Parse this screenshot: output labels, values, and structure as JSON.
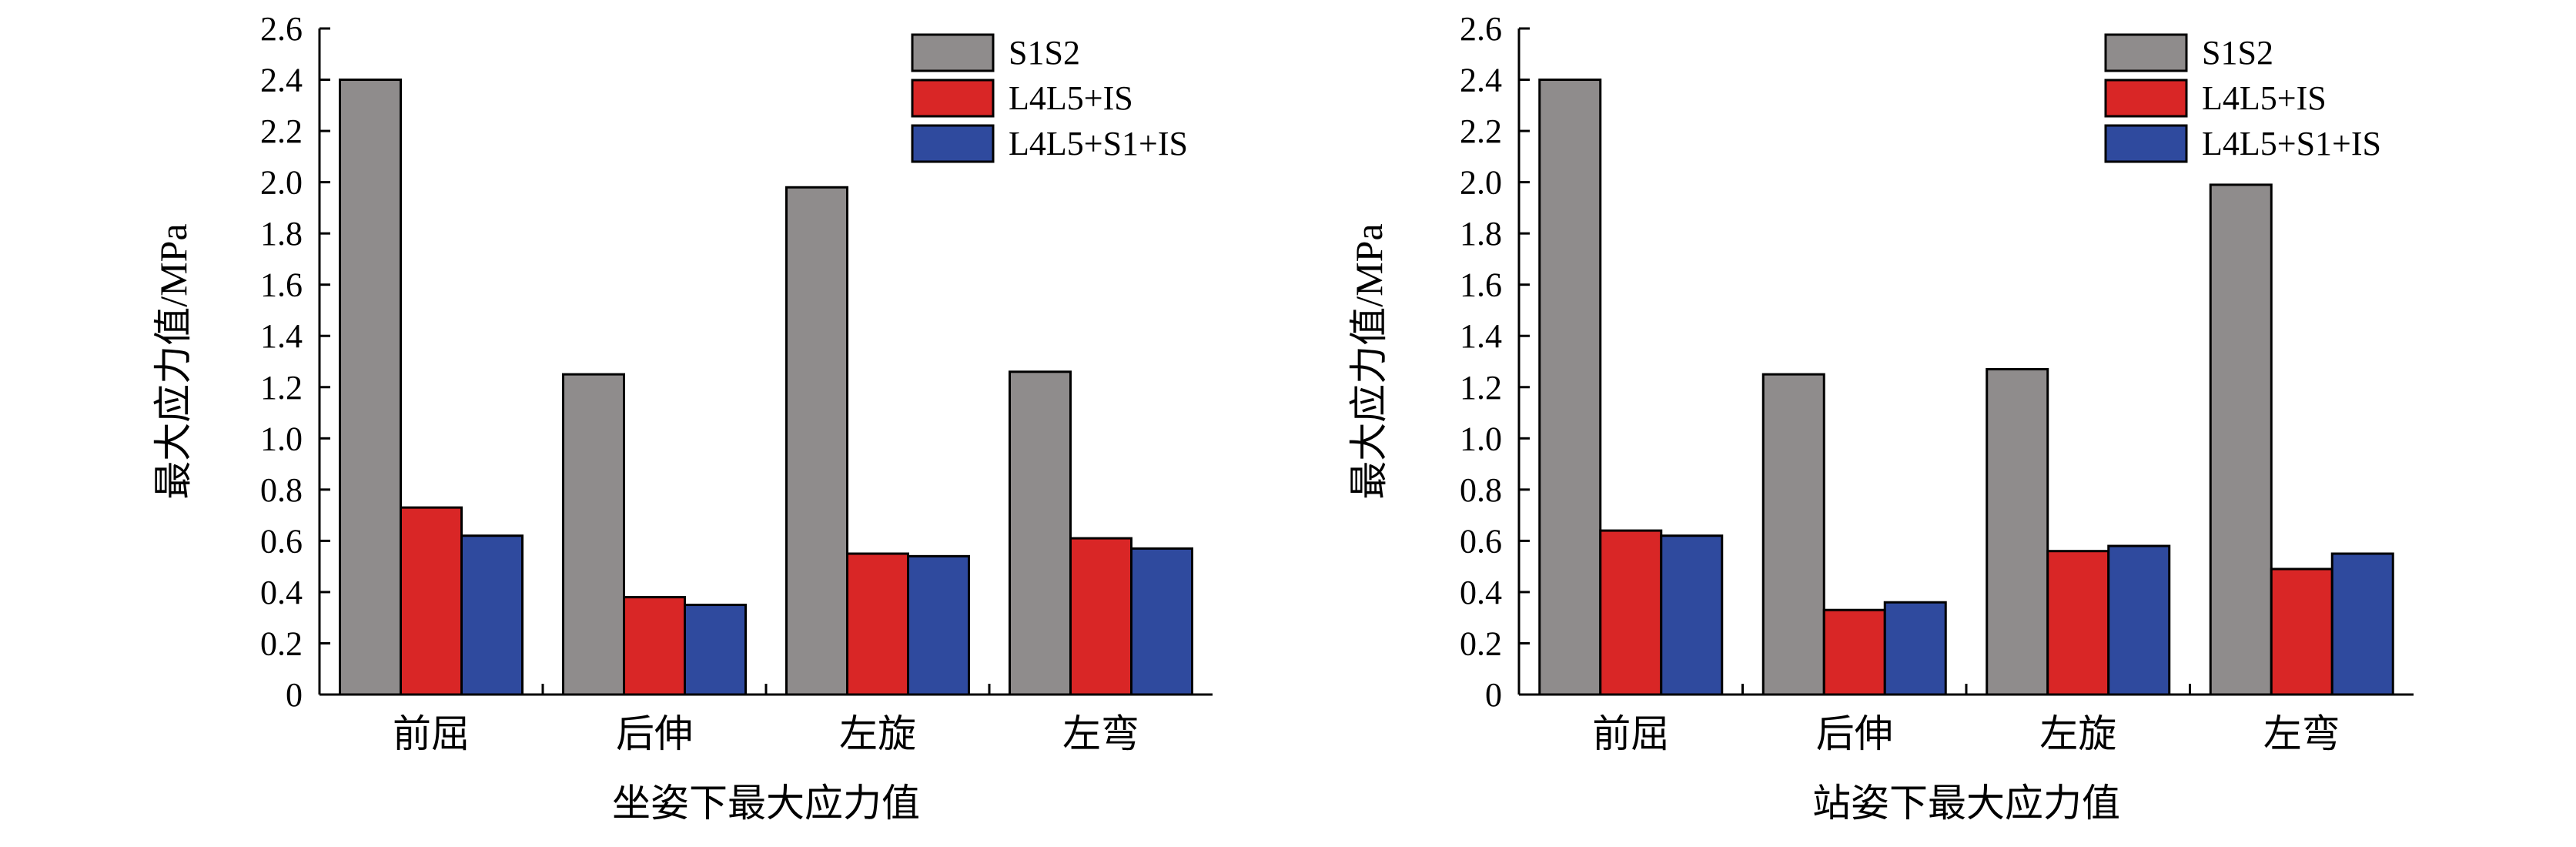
{
  "colors": {
    "S1S2": "#8f8c8c",
    "L4L5_IS": "#d92626",
    "L4L5_S1_IS": "#2f4a9e"
  },
  "chart_data": [
    {
      "type": "bar",
      "categories": [
        "前屈",
        "后伸",
        "左旋",
        "左弯"
      ],
      "series": [
        {
          "name": "S1S2",
          "values": [
            2.4,
            1.25,
            1.98,
            1.26
          ]
        },
        {
          "name": "L4L5+IS",
          "values": [
            0.73,
            0.38,
            0.55,
            0.61
          ]
        },
        {
          "name": "L4L5+S1+IS",
          "values": [
            0.62,
            0.35,
            0.54,
            0.57
          ]
        }
      ],
      "title": "",
      "xlabel": "坐姿下最大应力值",
      "ylabel": "最大应力值/MPa",
      "ylim": [
        0,
        2.6
      ],
      "yticks": [
        "0",
        "0.2",
        "0.4",
        "0.6",
        "0.8",
        "1.0",
        "1.2",
        "1.4",
        "1.6",
        "1.8",
        "2.0",
        "2.2",
        "2.4",
        "2.6"
      ],
      "legend_position": "top-right",
      "grid": false
    },
    {
      "type": "bar",
      "categories": [
        "前屈",
        "后伸",
        "左旋",
        "左弯"
      ],
      "series": [
        {
          "name": "S1S2",
          "values": [
            2.4,
            1.25,
            1.27,
            1.99
          ]
        },
        {
          "name": "L4L5+IS",
          "values": [
            0.64,
            0.33,
            0.56,
            0.49
          ]
        },
        {
          "name": "L4L5+S1+IS",
          "values": [
            0.62,
            0.36,
            0.58,
            0.55
          ]
        }
      ],
      "title": "",
      "xlabel": "站姿下最大应力值",
      "ylabel": "最大应力值/MPa",
      "ylim": [
        0,
        2.6
      ],
      "yticks": [
        "0",
        "0.2",
        "0.4",
        "0.6",
        "0.8",
        "1.0",
        "1.2",
        "1.4",
        "1.6",
        "1.8",
        "2.0",
        "2.2",
        "2.4",
        "2.6"
      ],
      "legend_position": "top-right",
      "grid": false
    }
  ]
}
